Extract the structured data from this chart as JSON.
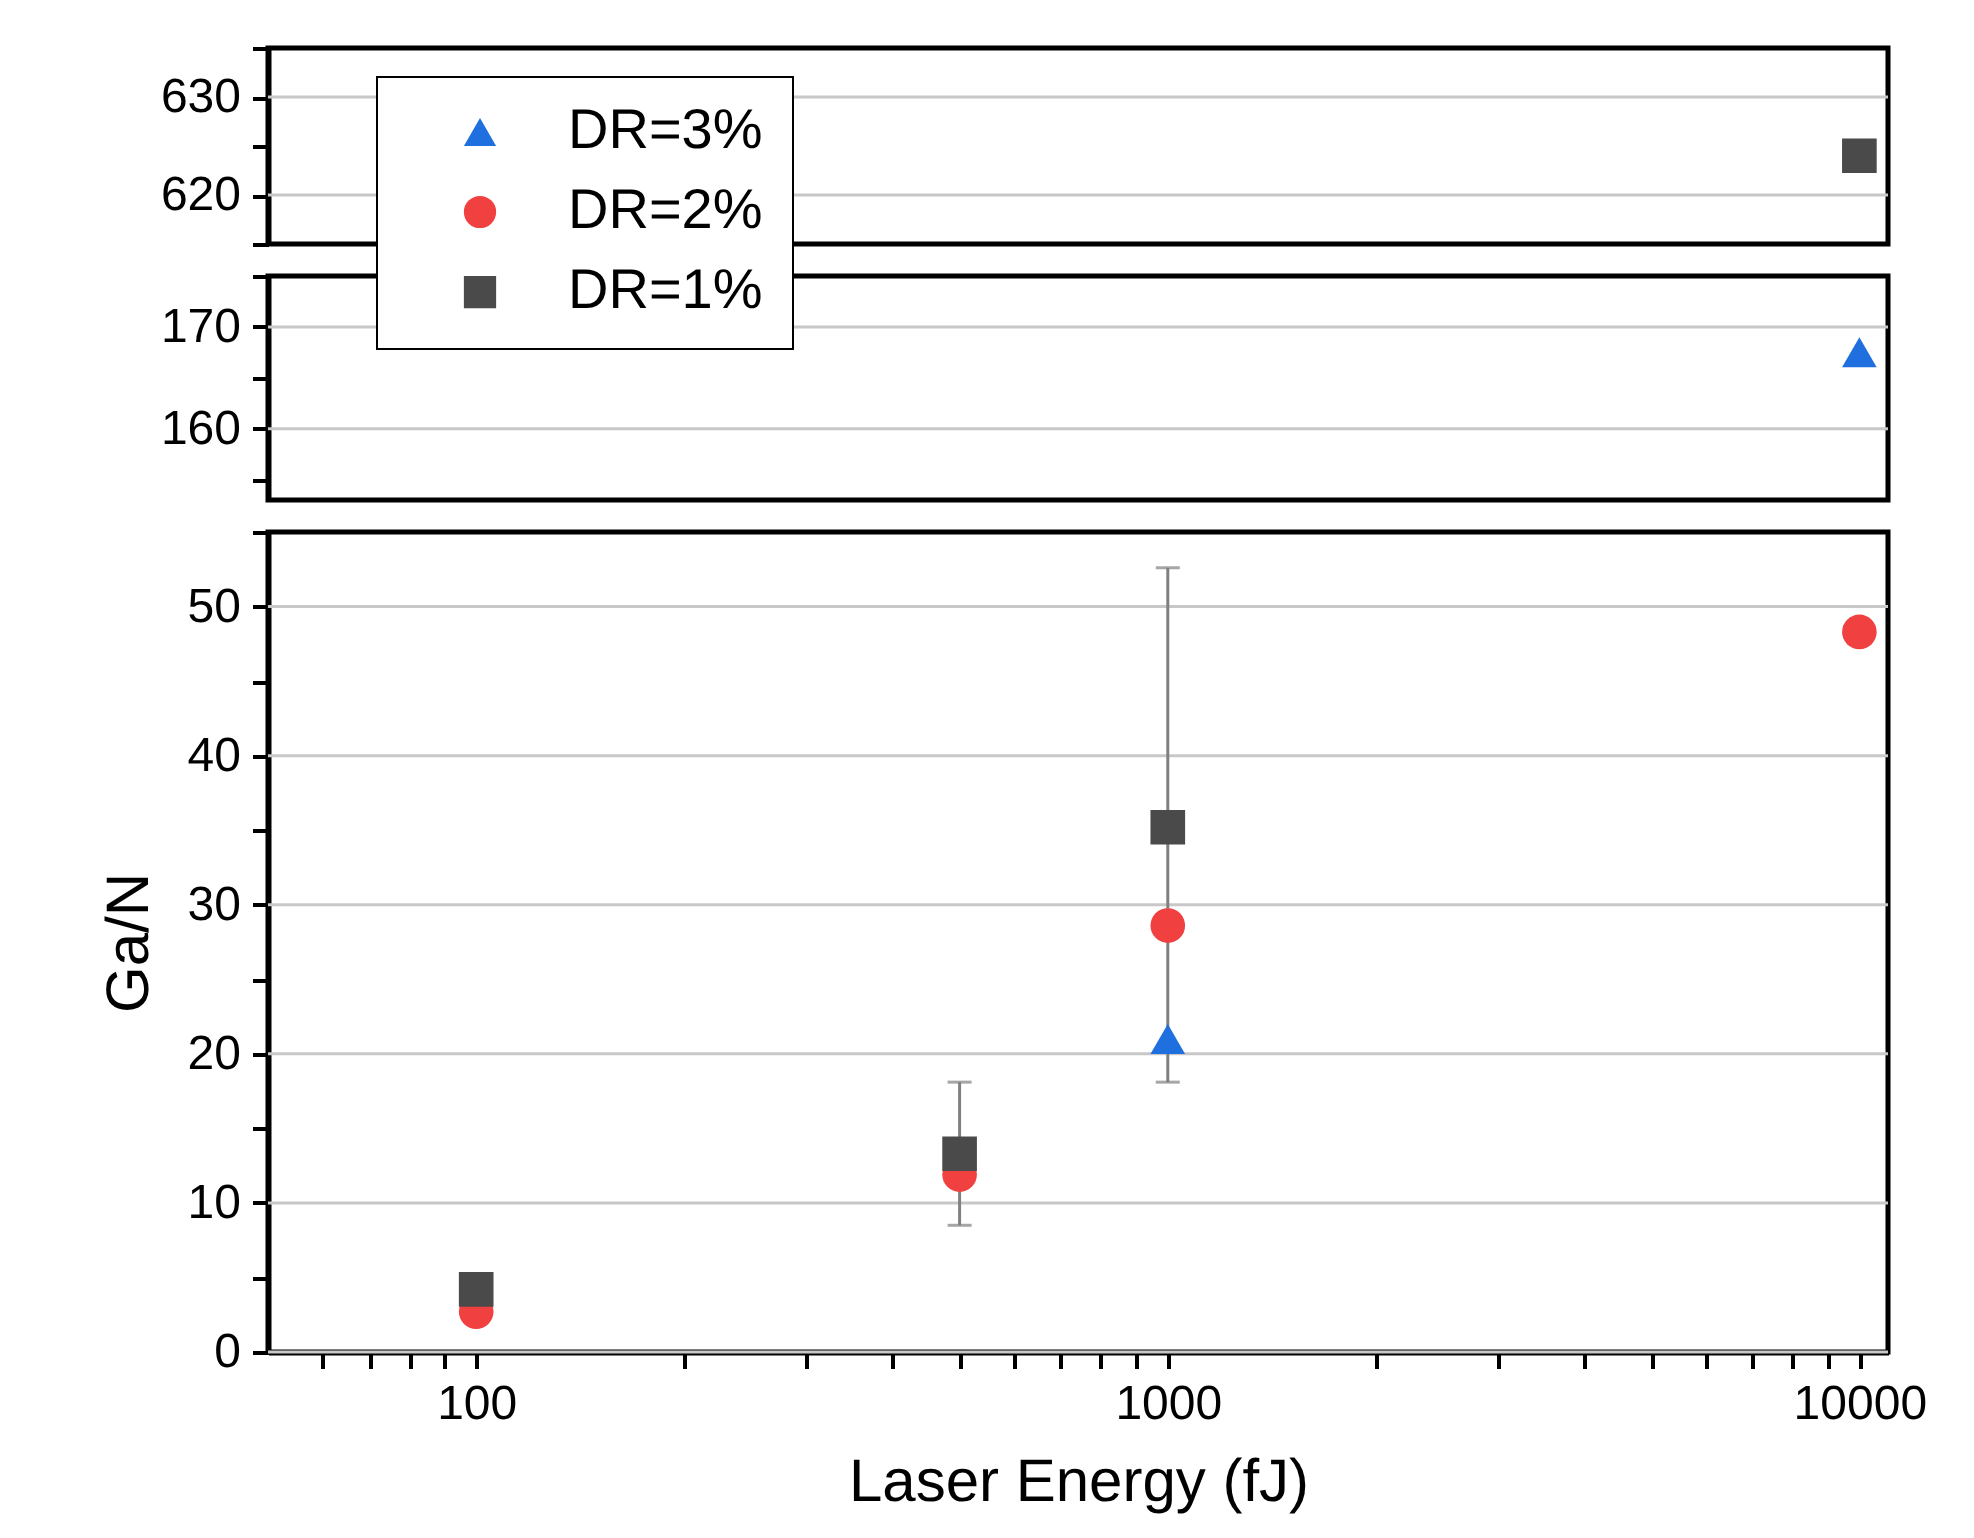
{
  "chart_data": [
    {
      "type": "scatter",
      "xlim": [
        50,
        11000
      ],
      "log": "x",
      "ylim": [
        615,
        635
      ],
      "yticks": [
        {
          "value": 615,
          "label": null
        },
        620,
        {
          "value": 625,
          "label": null
        },
        630,
        {
          "value": 635,
          "label": null
        }
      ],
      "grid": "y",
      "tick_labels": "y",
      "series": [
        {
          "color": "#4a4a4a",
          "marker": "square",
          "x": [
            10000
          ],
          "values": [
            624
          ]
        }
      ]
    },
    {
      "type": "scatter",
      "xlim": [
        50,
        11000
      ],
      "log": "x",
      "ylim": [
        153,
        175
      ],
      "yticks": [
        {
          "value": 155,
          "label": null
        },
        160,
        {
          "value": 165,
          "label": null
        },
        170,
        {
          "value": 175,
          "label": null
        }
      ],
      "grid": "y",
      "tick_labels": "y",
      "series": [
        {
          "color": "#1f6fdf",
          "marker": "triangle",
          "x": [
            10000
          ],
          "values": [
            167.5
          ]
        }
      ]
    },
    {
      "type": "scatter",
      "x": [
        100,
        500,
        1000,
        10000
      ],
      "xlim": [
        50,
        11000
      ],
      "log": "x",
      "ylim": [
        0,
        55
      ],
      "xlabel": "Laser Energy (fJ)",
      "ylabel": "Ga/N",
      "legend": "top left",
      "xticks": [
        {
          "value": 60,
          "label": null
        },
        {
          "value": 70,
          "label": null
        },
        {
          "value": 80,
          "label": null
        },
        {
          "value": 90,
          "label": null
        },
        100,
        {
          "value": 200,
          "label": null
        },
        {
          "value": 300,
          "label": null
        },
        {
          "value": 400,
          "label": null
        },
        {
          "value": 500,
          "label": null
        },
        {
          "value": 600,
          "label": null
        },
        {
          "value": 700,
          "label": null
        },
        {
          "value": 800,
          "label": null
        },
        {
          "value": 900,
          "label": null
        },
        1000,
        {
          "value": 2000,
          "label": null
        },
        {
          "value": 3000,
          "label": null
        },
        {
          "value": 4000,
          "label": null
        },
        {
          "value": 5000,
          "label": null
        },
        {
          "value": 6000,
          "label": null
        },
        {
          "value": 7000,
          "label": null
        },
        {
          "value": 8000,
          "label": null
        },
        {
          "value": 9000,
          "label": null
        },
        10000
      ],
      "yticks": [
        0,
        {
          "value": 5,
          "label": null
        },
        10,
        {
          "value": 15,
          "label": null
        },
        20,
        {
          "value": 25,
          "label": null
        },
        30,
        {
          "value": 35,
          "label": null
        },
        40,
        {
          "value": 45,
          "label": null
        },
        50,
        {
          "value": 55,
          "label": null
        }
      ],
      "grid": "y",
      "series": [
        {
          "name": "DR=3%",
          "color": "#1f6fdf",
          "marker": "triangle",
          "values": [
            null,
            null,
            21,
            null
          ]
        },
        {
          "name": "DR=2%",
          "color": "#f04040",
          "marker": "circle",
          "values": [
            2.7,
            11.9,
            28.6,
            48.3
          ]
        },
        {
          "name": "DR=1%",
          "color": "#4a4a4a",
          "marker": "square",
          "values": [
            4.2,
            13.3,
            35.2,
            null
          ],
          "errors": [
            null,
            [
              8.5,
              18.1
            ],
            [
              18.1,
              52.6
            ],
            null
          ]
        }
      ]
    }
  ]
}
